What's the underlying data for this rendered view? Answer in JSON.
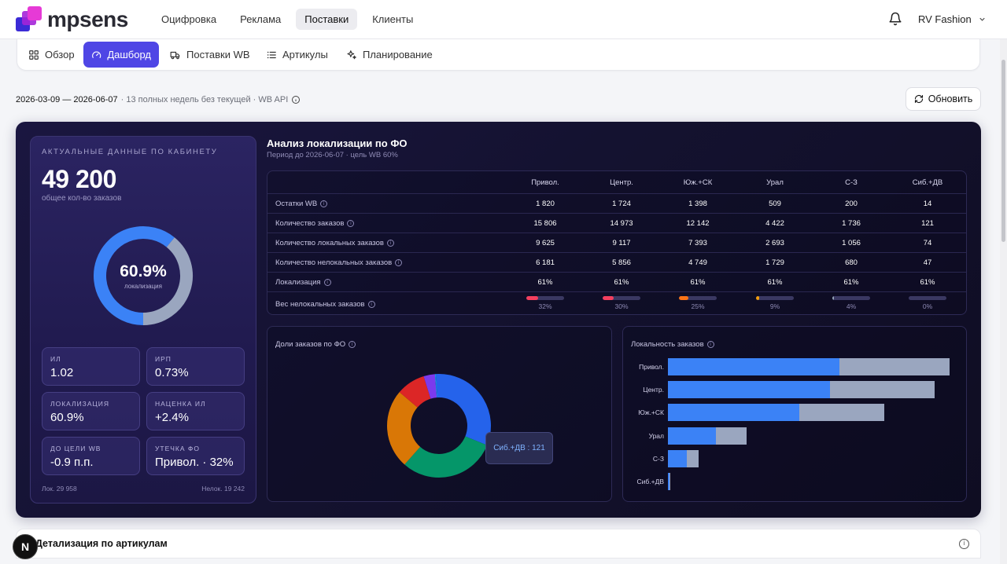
{
  "brand": {
    "name": "mpsens"
  },
  "topnav": {
    "items": [
      {
        "label": "Оцифровка"
      },
      {
        "label": "Реклама"
      },
      {
        "label": "Поставки",
        "active": true
      },
      {
        "label": "Клиенты"
      }
    ]
  },
  "account": {
    "name": "RV Fashion"
  },
  "tabs": [
    {
      "label": "Обзор",
      "icon": "grid-icon"
    },
    {
      "label": "Дашборд",
      "icon": "gauge-icon",
      "active": true
    },
    {
      "label": "Поставки WB",
      "icon": "truck-icon"
    },
    {
      "label": "Артикулы",
      "icon": "list-icon"
    },
    {
      "label": "Планирование",
      "icon": "sparkles-icon"
    }
  ],
  "period": {
    "range": "2026-03-09 — 2026-06-07",
    "note": "· 13 полных недель без текущей · WB API"
  },
  "refresh_label": "Обновить",
  "summary": {
    "heading": "АКТУАЛЬНЫЕ ДАННЫЕ ПО КАБИНЕТУ",
    "total": "49 200",
    "total_caption": "общее кол-во заказов",
    "localization_pct": "60.9%",
    "localization_fraction": 0.609,
    "localization_caption": "локализация",
    "metrics": [
      {
        "title": "ИЛ",
        "value": "1.02"
      },
      {
        "title": "ИРП",
        "value": "0.73%"
      },
      {
        "title": "ЛОКАЛИЗАЦИЯ",
        "value": "60.9%"
      },
      {
        "title": "НАЦЕНКА ИЛ",
        "value": "+2.4%"
      },
      {
        "title": "ДО ЦЕЛИ WB",
        "value": "-0.9 п.п."
      },
      {
        "title": "УТЕЧКА ФО",
        "value": "Привол. · 32%"
      }
    ],
    "local_footer": "Лок. 29 958",
    "nonlocal_footer": "Нелок. 19 242"
  },
  "analysis": {
    "title": "Анализ локализации по ФО",
    "subtitle": "Период до 2026-06-07 · цель WB 60%",
    "columns": [
      "Привол.",
      "Центр.",
      "Юж.+СК",
      "Урал",
      "С-З",
      "Сиб.+ДВ"
    ],
    "rows": [
      {
        "label": "Остатки WB",
        "values": [
          "1 820",
          "1 724",
          "1 398",
          "509",
          "200",
          "14"
        ]
      },
      {
        "label": "Количество заказов",
        "values": [
          "15 806",
          "14 973",
          "12 142",
          "4 422",
          "1 736",
          "121"
        ]
      },
      {
        "label": "Количество локальных заказов",
        "values": [
          "9 625",
          "9 117",
          "7 393",
          "2 693",
          "1 056",
          "74"
        ]
      },
      {
        "label": "Количество нелокальных заказов",
        "values": [
          "6 181",
          "5 856",
          "4 749",
          "1 729",
          "680",
          "47"
        ]
      },
      {
        "label": "Локализация",
        "values": [
          "61%",
          "61%",
          "61%",
          "61%",
          "61%",
          "61%"
        ]
      }
    ],
    "weight_row": {
      "label": "Вес нелокальных заказов",
      "values": [
        32,
        30,
        25,
        9,
        4,
        0
      ],
      "labels": [
        "32%",
        "30%",
        "25%",
        "9%",
        "4%",
        "0%"
      ],
      "colors": [
        "#f43f5e",
        "#f43f5e",
        "#f97316",
        "#f59e0b",
        "#94a3b8",
        "#94a3b8"
      ]
    }
  },
  "share_chart": {
    "title": "Доли заказов по ФО",
    "tooltip": "Сиб.+ДВ : 121"
  },
  "local_chart": {
    "title": "Локальность заказов"
  },
  "chart_data": [
    {
      "type": "pie",
      "title": "Доли заказов по ФО",
      "categories": [
        "Привол.",
        "Центр.",
        "Юж.+СК",
        "Урал",
        "С-З",
        "Сиб.+ДВ"
      ],
      "values": [
        15806,
        14973,
        12142,
        4422,
        1736,
        121
      ],
      "colors": [
        "#2563eb",
        "#059669",
        "#d97706",
        "#dc2626",
        "#7c3aed",
        "#0ea5e9"
      ]
    },
    {
      "type": "bar",
      "orientation": "horizontal",
      "stacked": true,
      "title": "Локальность заказов",
      "categories": [
        "Привол.",
        "Центр.",
        "Юж.+СК",
        "Урал",
        "С-З",
        "Сиб.+ДВ"
      ],
      "series": [
        {
          "values": [
            9625,
            9117,
            7393,
            2693,
            1056,
            74
          ],
          "color": "#3b82f6"
        },
        {
          "values": [
            6181,
            5856,
            4749,
            1729,
            680,
            47
          ],
          "color": "#9aa6bf"
        }
      ]
    }
  ],
  "detail": {
    "title": "Детализация по артикулам"
  }
}
